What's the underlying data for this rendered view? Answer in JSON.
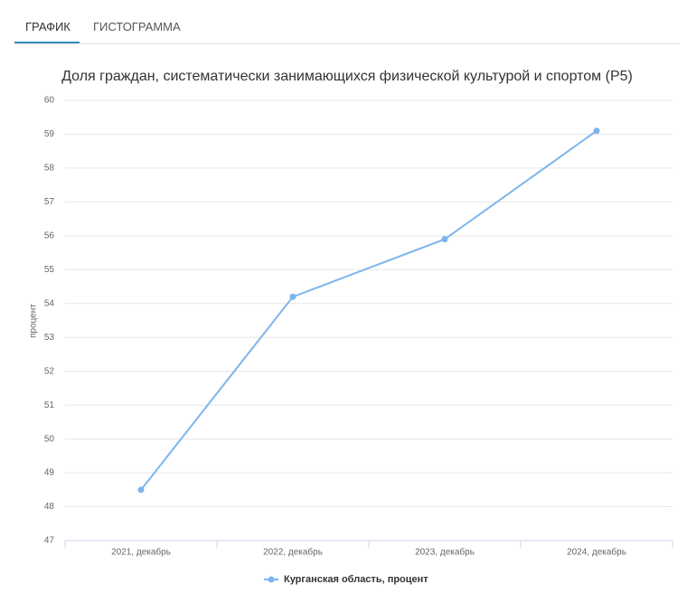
{
  "tabs": [
    "ГРАФИК",
    "ГИСТОГРАММА"
  ],
  "chart_data": {
    "type": "line",
    "title": "Доля граждан, систематически занимающихся физической культурой и спортом (Р5)",
    "y_label": "процент",
    "categories": [
      "2021, декабрь",
      "2022, декабрь",
      "2023, декабрь",
      "2024, декабрь"
    ],
    "series": [
      {
        "name": "Курганская область, процент",
        "color": "#7cb5ec",
        "values": [
          48.5,
          54.2,
          55.9,
          59.1
        ]
      }
    ],
    "ylim": [
      47,
      60
    ],
    "yticks": [
      47,
      48,
      49,
      50,
      51,
      52,
      53,
      54,
      55,
      56,
      57,
      58,
      59,
      60
    ],
    "grid": true
  }
}
